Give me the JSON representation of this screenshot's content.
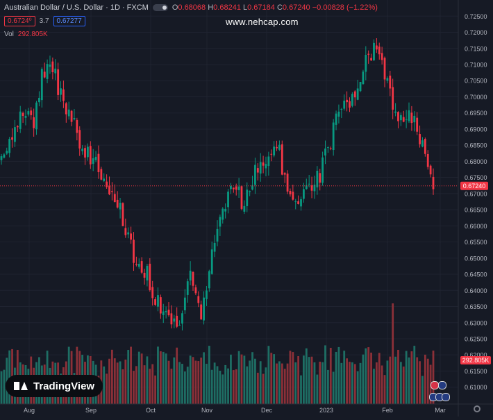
{
  "header": {
    "symbol": "Australian Dollar / U.S. Dollar · 1D · FXCM",
    "open_label": "O",
    "open": "0.68068",
    "high_label": "H",
    "high": "0.68241",
    "low_label": "L",
    "low": "0.67184",
    "close_label": "C",
    "close": "0.67240",
    "change": "−0.00828 (−1.22%)"
  },
  "quote": {
    "bid": "0.6724⁰",
    "spread": "3.7",
    "ask": "0.67277"
  },
  "volume": {
    "label": "Vol",
    "value": "292.805K"
  },
  "watermark": "www.nehcap.com",
  "brand": "TradingView",
  "colors": {
    "up": "#089981",
    "down": "#f23645",
    "background": "#161a25",
    "up_vol": "#1e6e64",
    "down_vol": "#8b3038"
  },
  "chart_data": {
    "type": "candlestick",
    "y_ticks": [
      "0.72500",
      "0.72000",
      "0.71500",
      "0.71000",
      "0.70500",
      "0.70000",
      "0.69500",
      "0.69000",
      "0.68500",
      "0.68000",
      "0.67500",
      "0.67000",
      "0.66500",
      "0.66000",
      "0.65500",
      "0.65000",
      "0.64500",
      "0.64000",
      "0.63500",
      "0.63000",
      "0.62500",
      "0.62000",
      "0.61500",
      "0.61000"
    ],
    "ylim": [
      0.608,
      0.727
    ],
    "x_ticks": [
      "Aug",
      "Sep",
      "Oct",
      "Nov",
      "Dec",
      "2023",
      "Feb",
      "Mar"
    ],
    "last_price_label": "0.67240",
    "last_price": 0.6724,
    "volume_label": "292.805K",
    "close_path": [
      {
        "i": 0,
        "c": 0.68
      },
      {
        "i": 4,
        "c": 0.688
      },
      {
        "i": 8,
        "c": 0.697
      },
      {
        "i": 12,
        "c": 0.692
      },
      {
        "i": 15,
        "c": 0.707
      },
      {
        "i": 18,
        "c": 0.712
      },
      {
        "i": 22,
        "c": 0.7
      },
      {
        "i": 26,
        "c": 0.693
      },
      {
        "i": 30,
        "c": 0.684
      },
      {
        "i": 34,
        "c": 0.68
      },
      {
        "i": 38,
        "c": 0.674
      },
      {
        "i": 42,
        "c": 0.669
      },
      {
        "i": 46,
        "c": 0.66
      },
      {
        "i": 50,
        "c": 0.648
      },
      {
        "i": 54,
        "c": 0.645
      },
      {
        "i": 58,
        "c": 0.636
      },
      {
        "i": 62,
        "c": 0.63
      },
      {
        "i": 66,
        "c": 0.632
      },
      {
        "i": 70,
        "c": 0.645
      },
      {
        "i": 74,
        "c": 0.63
      },
      {
        "i": 78,
        "c": 0.65
      },
      {
        "i": 82,
        "c": 0.665
      },
      {
        "i": 86,
        "c": 0.673
      },
      {
        "i": 90,
        "c": 0.666
      },
      {
        "i": 94,
        "c": 0.678
      },
      {
        "i": 98,
        "c": 0.682
      },
      {
        "i": 102,
        "c": 0.687
      },
      {
        "i": 106,
        "c": 0.67
      },
      {
        "i": 110,
        "c": 0.668
      },
      {
        "i": 114,
        "c": 0.673
      },
      {
        "i": 118,
        "c": 0.676
      },
      {
        "i": 122,
        "c": 0.687
      },
      {
        "i": 126,
        "c": 0.697
      },
      {
        "i": 130,
        "c": 0.7
      },
      {
        "i": 134,
        "c": 0.71
      },
      {
        "i": 138,
        "c": 0.714
      },
      {
        "i": 142,
        "c": 0.707
      },
      {
        "i": 146,
        "c": 0.693
      },
      {
        "i": 150,
        "c": 0.696
      },
      {
        "i": 154,
        "c": 0.69
      },
      {
        "i": 158,
        "c": 0.681
      },
      {
        "i": 160,
        "c": 0.6724
      }
    ]
  }
}
